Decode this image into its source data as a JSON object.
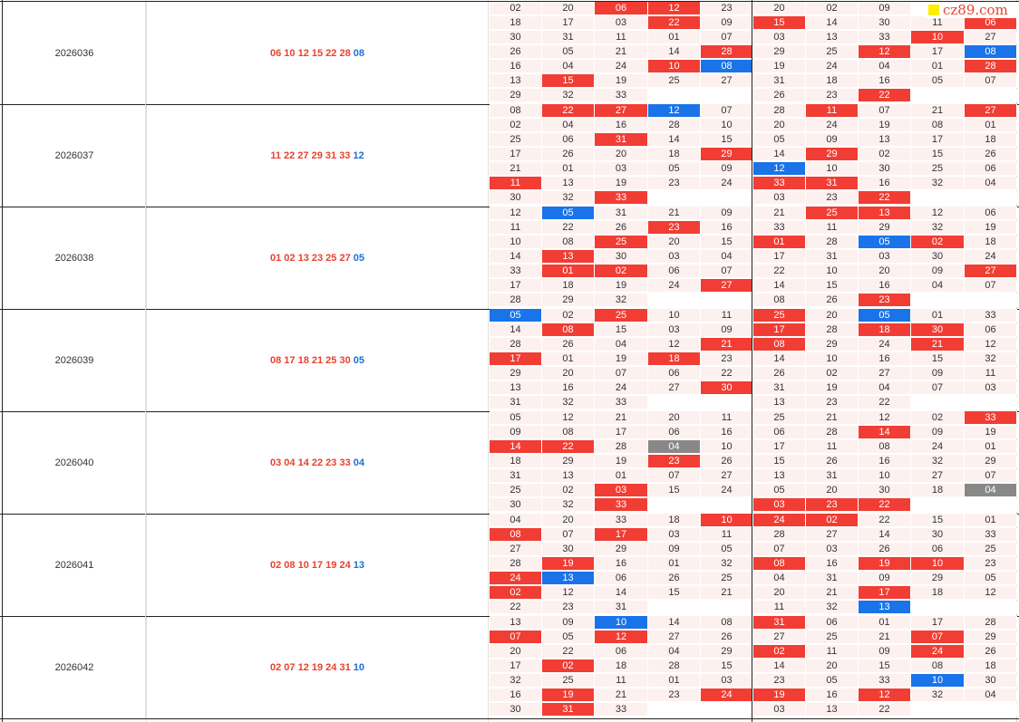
{
  "watermark": {
    "square_color": "#ffee00",
    "text": "cz89.com"
  },
  "colors": {
    "red": "#f13d33",
    "blue": "#1a73e8",
    "gray": "#888888",
    "cell_bg": "#fdf1f0"
  },
  "blocks": [
    {
      "issue": "2026036",
      "draw": {
        "reds": "06 10 12 15 22 28",
        "blue": "08"
      },
      "rows": [
        [
          "02",
          "20",
          "06r",
          "12r",
          "23",
          "20",
          "02",
          "09",
          "",
          ""
        ],
        [
          "18",
          "17",
          "03",
          "22r",
          "09",
          "15r",
          "14",
          "30",
          "11",
          "06r"
        ],
        [
          "30",
          "31",
          "11",
          "01",
          "07",
          "03",
          "13",
          "33",
          "10r",
          "27"
        ],
        [
          "26",
          "05",
          "21",
          "14",
          "28r",
          "29",
          "25",
          "12r",
          "17",
          "08b"
        ],
        [
          "16",
          "04",
          "24",
          "10r",
          "08b",
          "19",
          "24",
          "04",
          "01",
          "28r"
        ],
        [
          "13",
          "15r",
          "19",
          "25",
          "27",
          "31",
          "18",
          "16",
          "05",
          "07"
        ],
        [
          "29",
          "32",
          "33",
          "",
          "",
          "26",
          "23",
          "22r",
          "",
          ""
        ]
      ]
    },
    {
      "issue": "2026037",
      "draw": {
        "reds": "11 22 27 29 31 33",
        "blue": "12"
      },
      "rows": [
        [
          "08",
          "22r",
          "27r",
          "12b",
          "07",
          "28",
          "11r",
          "07",
          "21",
          "27r"
        ],
        [
          "02",
          "04",
          "16",
          "28",
          "10",
          "20",
          "24",
          "19",
          "08",
          "01"
        ],
        [
          "25",
          "06",
          "31r",
          "14",
          "15",
          "05",
          "09",
          "13",
          "17",
          "18"
        ],
        [
          "17",
          "26",
          "20",
          "18",
          "29r",
          "14",
          "29r",
          "02",
          "15",
          "26"
        ],
        [
          "21",
          "01",
          "03",
          "05",
          "09",
          "12b",
          "10",
          "30",
          "25",
          "06"
        ],
        [
          "11r",
          "13",
          "19",
          "23",
          "24",
          "33r",
          "31r",
          "16",
          "32",
          "04"
        ],
        [
          "30",
          "32",
          "33r",
          "",
          "",
          "03",
          "23",
          "22r",
          "",
          ""
        ]
      ]
    },
    {
      "issue": "2026038",
      "draw": {
        "reds": "01 02 13 23 25 27",
        "blue": "05"
      },
      "rows": [
        [
          "12",
          "05b",
          "31",
          "21",
          "09",
          "21",
          "25r",
          "13r",
          "12",
          "06"
        ],
        [
          "11",
          "22",
          "26",
          "23r",
          "16",
          "33",
          "11",
          "29",
          "32",
          "19"
        ],
        [
          "10",
          "08",
          "25r",
          "20",
          "15",
          "01r",
          "28",
          "05b",
          "02r",
          "18"
        ],
        [
          "14",
          "13r",
          "30",
          "03",
          "04",
          "17",
          "31",
          "03",
          "30",
          "24"
        ],
        [
          "33",
          "01r",
          "02r",
          "06",
          "07",
          "22",
          "10",
          "20",
          "09",
          "27r"
        ],
        [
          "17",
          "18",
          "19",
          "24",
          "27r",
          "14",
          "15",
          "16",
          "04",
          "07"
        ],
        [
          "28",
          "29",
          "32",
          "",
          "",
          "08",
          "26",
          "23r",
          "",
          ""
        ]
      ]
    },
    {
      "issue": "2026039",
      "draw": {
        "reds": "08 17 18 21 25 30",
        "blue": "05"
      },
      "rows": [
        [
          "05b",
          "02",
          "25r",
          "10",
          "11",
          "25r",
          "20",
          "05b",
          "01",
          "33"
        ],
        [
          "14",
          "08r",
          "15",
          "03",
          "09",
          "17r",
          "28",
          "18r",
          "30r",
          "06"
        ],
        [
          "28",
          "26",
          "04",
          "12",
          "21r",
          "08r",
          "29",
          "24",
          "21r",
          "12"
        ],
        [
          "17r",
          "01",
          "19",
          "18r",
          "23",
          "14",
          "10",
          "16",
          "15",
          "32"
        ],
        [
          "29",
          "20",
          "07",
          "06",
          "22",
          "26",
          "02",
          "27",
          "09",
          "11"
        ],
        [
          "13",
          "16",
          "24",
          "27",
          "30r",
          "31",
          "19",
          "04",
          "07",
          "03"
        ],
        [
          "31",
          "32",
          "33",
          "",
          "",
          "13",
          "23",
          "22",
          "",
          ""
        ]
      ]
    },
    {
      "issue": "2026040",
      "draw": {
        "reds": "03 04 14 22 23 33",
        "blue": "04"
      },
      "rows": [
        [
          "05",
          "12",
          "21",
          "20",
          "11",
          "25",
          "21",
          "12",
          "02",
          "33r"
        ],
        [
          "09",
          "08",
          "17",
          "06",
          "16",
          "06",
          "28",
          "14r",
          "09",
          "19"
        ],
        [
          "14r",
          "22r",
          "28",
          "04g",
          "10",
          "17",
          "11",
          "08",
          "24",
          "01"
        ],
        [
          "18",
          "29",
          "19",
          "23r",
          "26",
          "15",
          "26",
          "16",
          "32",
          "29"
        ],
        [
          "31",
          "13",
          "01",
          "07",
          "27",
          "13",
          "31",
          "10",
          "27",
          "07"
        ],
        [
          "25",
          "02",
          "03r",
          "15",
          "24",
          "05",
          "20",
          "30",
          "18",
          "04g"
        ],
        [
          "30",
          "32",
          "33r",
          "",
          "",
          "03r",
          "23r",
          "22r",
          "",
          ""
        ]
      ]
    },
    {
      "issue": "2026041",
      "draw": {
        "reds": "02 08 10 17 19 24",
        "blue": "13"
      },
      "rows": [
        [
          "04",
          "20",
          "33",
          "18",
          "10r",
          "24r",
          "02r",
          "22",
          "15",
          "01"
        ],
        [
          "08r",
          "07",
          "17r",
          "03",
          "11",
          "28",
          "27",
          "14",
          "30",
          "33"
        ],
        [
          "27",
          "30",
          "29",
          "09",
          "05",
          "07",
          "03",
          "26",
          "06",
          "25"
        ],
        [
          "28",
          "19r",
          "16",
          "01",
          "32",
          "08r",
          "16",
          "19r",
          "10r",
          "23"
        ],
        [
          "24r",
          "13b",
          "06",
          "26",
          "25",
          "04",
          "31",
          "09",
          "29",
          "05"
        ],
        [
          "02r",
          "12",
          "14",
          "15",
          "21",
          "20",
          "21",
          "17r",
          "18",
          "12"
        ],
        [
          "22",
          "23",
          "31",
          "",
          "",
          "11",
          "32",
          "13b",
          "",
          ""
        ]
      ]
    },
    {
      "issue": "2026042",
      "draw": {
        "reds": "02 07 12 19 24 31",
        "blue": "10"
      },
      "rows": [
        [
          "13",
          "09",
          "10b",
          "14",
          "08",
          "31r",
          "06",
          "01",
          "17",
          "28"
        ],
        [
          "07r",
          "05",
          "12r",
          "27",
          "26",
          "27",
          "25",
          "21",
          "07r",
          "29"
        ],
        [
          "20",
          "22",
          "06",
          "04",
          "29",
          "02r",
          "11",
          "09",
          "24r",
          "26"
        ],
        [
          "17",
          "02r",
          "18",
          "28",
          "15",
          "14",
          "20",
          "15",
          "08",
          "18"
        ],
        [
          "32",
          "25",
          "11",
          "01",
          "03",
          "23",
          "05",
          "33",
          "10b",
          "30"
        ],
        [
          "16",
          "19r",
          "21",
          "23",
          "24r",
          "19r",
          "16",
          "12r",
          "32",
          "04"
        ],
        [
          "30",
          "31r",
          "33",
          "",
          "",
          "03",
          "13",
          "22",
          "",
          ""
        ]
      ]
    }
  ]
}
